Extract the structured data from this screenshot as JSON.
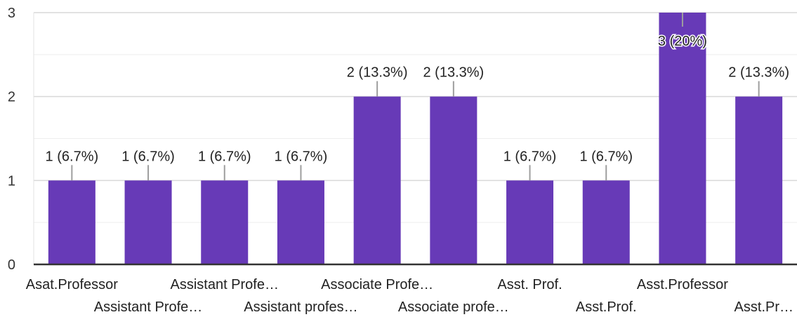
{
  "chart_data": {
    "type": "bar",
    "categories": [
      "Asat.Professor",
      "Assistant Profe…",
      "Assistant Profe…",
      "Assistant profes…",
      "Associate Profe…",
      "Associate profe…",
      "Asst. Prof.",
      "Asst.Prof.",
      "Asst.Professor",
      "Asst.Pr…"
    ],
    "values": [
      1,
      1,
      1,
      1,
      2,
      2,
      1,
      1,
      3,
      2
    ],
    "data_labels": [
      "1 (6.7%)",
      "1 (6.7%)",
      "1 (6.7%)",
      "1 (6.7%)",
      "2 (13.3%)",
      "2 (13.3%)",
      "1 (6.7%)",
      "1 (6.7%)",
      "3 (20%)",
      "2 (13.3%)"
    ],
    "y_ticks": [
      "0",
      "1",
      "2",
      "3"
    ],
    "ylim": [
      0,
      3
    ],
    "grid": true,
    "bar_color": "#673ab7",
    "title": "",
    "xlabel": "",
    "ylabel": ""
  }
}
